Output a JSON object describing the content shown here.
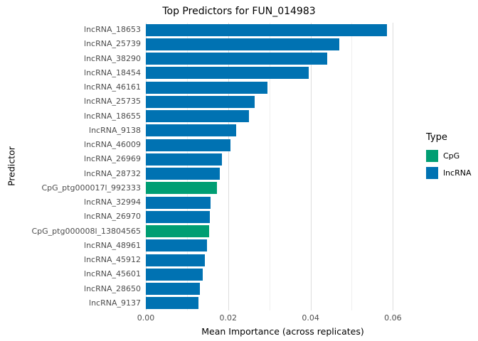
{
  "title": "Top Predictors for FUN_014983",
  "xlabel": "Mean Importance (across replicates)",
  "ylabel": "Predictor",
  "legend": {
    "title": "Type",
    "items": [
      {
        "label": "CpG",
        "color": "#009E73"
      },
      {
        "label": "lncRNA",
        "color": "#0072B2"
      }
    ]
  },
  "chart_data": {
    "type": "bar",
    "orientation": "horizontal",
    "title": "Top Predictors for FUN_014983",
    "xlabel": "Mean Importance (across replicates)",
    "ylabel": "Predictor",
    "grid": true,
    "legend_position": "right",
    "xlim": [
      0,
      0.0665
    ],
    "x_ticks": [
      {
        "value": 0.0,
        "label": "0.00"
      },
      {
        "value": 0.02,
        "label": "0.02"
      },
      {
        "value": 0.04,
        "label": "0.04"
      },
      {
        "value": 0.06,
        "label": "0.06"
      }
    ],
    "x_minor": [
      0.01,
      0.03,
      0.05
    ],
    "categories": [
      "lncRNA_18653",
      "lncRNA_25739",
      "lncRNA_38290",
      "lncRNA_18454",
      "lncRNA_46161",
      "lncRNA_25735",
      "lncRNA_18655",
      "lncRNA_9138",
      "lncRNA_46009",
      "lncRNA_26969",
      "lncRNA_28732",
      "CpG_ptg000017l_992333",
      "lncRNA_32994",
      "lncRNA_26970",
      "CpG_ptg000008l_13804565",
      "lncRNA_48961",
      "lncRNA_45912",
      "lncRNA_45601",
      "lncRNA_28650",
      "lncRNA_9137"
    ],
    "values": [
      0.0585,
      0.047,
      0.044,
      0.0395,
      0.0295,
      0.0265,
      0.025,
      0.022,
      0.0205,
      0.0185,
      0.018,
      0.0172,
      0.0158,
      0.0156,
      0.0154,
      0.0148,
      0.0143,
      0.0138,
      0.0132,
      0.0128
    ],
    "types": [
      "lncRNA",
      "lncRNA",
      "lncRNA",
      "lncRNA",
      "lncRNA",
      "lncRNA",
      "lncRNA",
      "lncRNA",
      "lncRNA",
      "lncRNA",
      "lncRNA",
      "CpG",
      "lncRNA",
      "lncRNA",
      "CpG",
      "lncRNA",
      "lncRNA",
      "lncRNA",
      "lncRNA",
      "lncRNA"
    ],
    "colors": {
      "CpG": "#009E73",
      "lncRNA": "#0072B2"
    }
  }
}
